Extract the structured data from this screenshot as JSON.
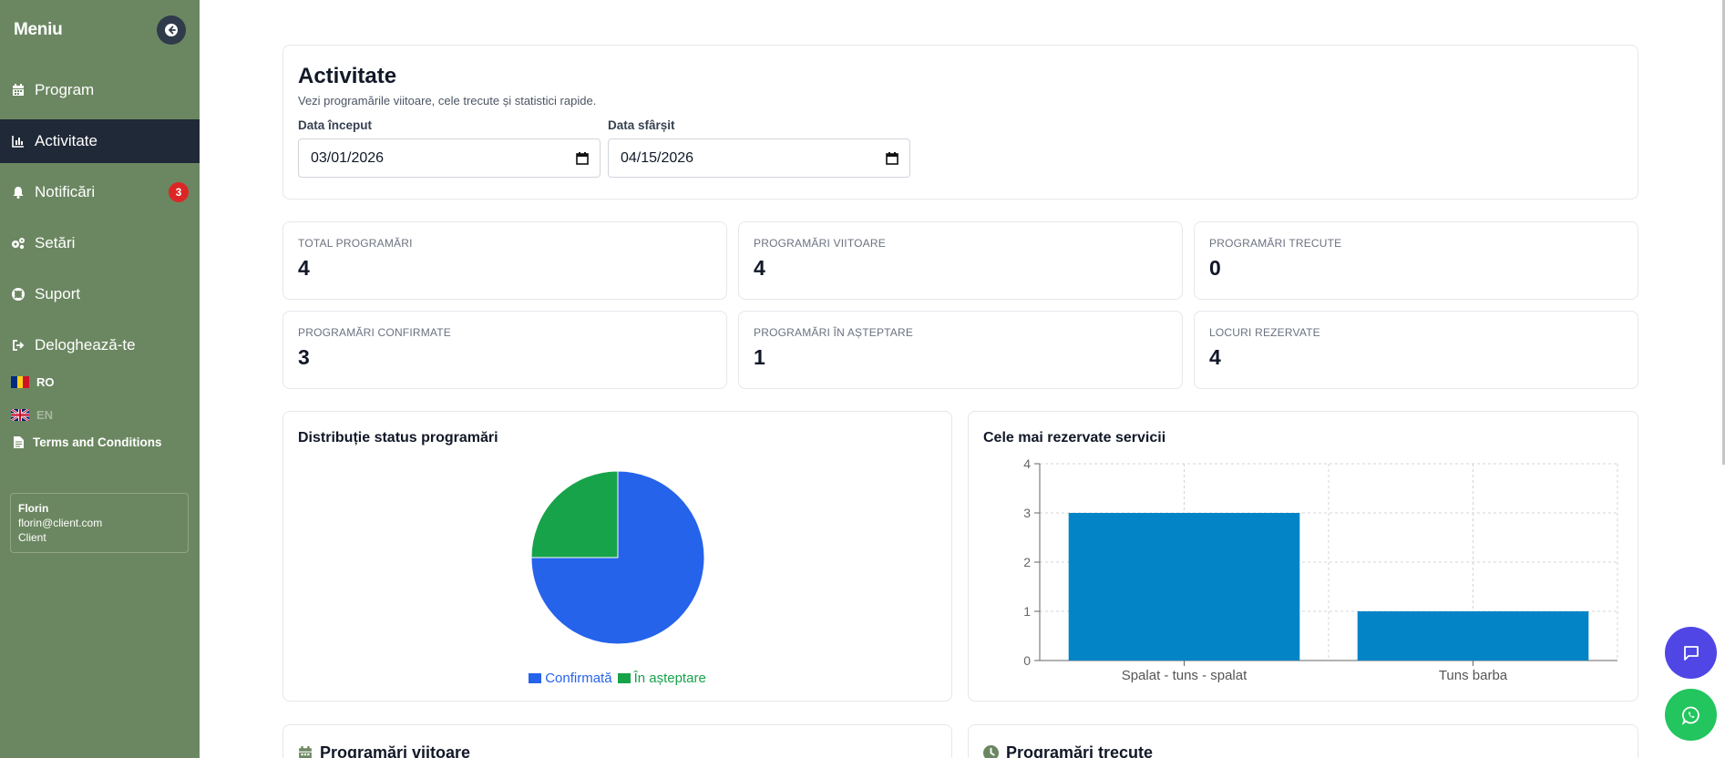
{
  "sidebar": {
    "title": "Meniu",
    "items": [
      {
        "label": "Program",
        "icon": "calendar-icon"
      },
      {
        "label": "Activitate",
        "icon": "chart-icon",
        "active": true
      },
      {
        "label": "Notificări",
        "icon": "bell-icon",
        "badge": "3"
      },
      {
        "label": "Setări",
        "icon": "gears-icon"
      },
      {
        "label": "Suport",
        "icon": "lifebuoy-icon"
      },
      {
        "label": "Deloghează-te",
        "icon": "logout-icon"
      }
    ],
    "languages": [
      {
        "code": "RO",
        "active": true
      },
      {
        "code": "EN",
        "active": false
      }
    ],
    "terms_label": "Terms and Conditions",
    "user": {
      "name": "Florin",
      "email": "florin@client.com",
      "role": "Client"
    }
  },
  "header": {
    "title": "Activitate",
    "subtitle": "Vezi programările viitoare, cele trecute și statistici rapide.",
    "start_label": "Data început",
    "start_value": "03/01/2026",
    "end_label": "Data sfârșit",
    "end_value": "04/15/2026"
  },
  "stats": [
    {
      "label": "TOTAL PROGRAMĂRI",
      "value": "4"
    },
    {
      "label": "PROGRAMĂRI VIITOARE",
      "value": "4"
    },
    {
      "label": "PROGRAMĂRI TRECUTE",
      "value": "0"
    },
    {
      "label": "PROGRAMĂRI CONFIRMATE",
      "value": "3"
    },
    {
      "label": "PROGRAMĂRI ÎN AȘTEPTARE",
      "value": "1"
    },
    {
      "label": "LOCURI REZERVATE",
      "value": "4"
    }
  ],
  "chart_data": [
    {
      "type": "pie",
      "title": "Distribuție status programări",
      "categories": [
        "Confirmată",
        "În așteptare"
      ],
      "values": [
        3,
        1
      ],
      "colors": [
        "#2563eb",
        "#16a34a"
      ],
      "legend": "bottom"
    },
    {
      "type": "bar",
      "title": "Cele mai rezervate servicii",
      "categories": [
        "Spalat - tuns - spalat",
        "Tuns barba"
      ],
      "values": [
        3,
        1
      ],
      "ylim": [
        0,
        4
      ],
      "yticks": [
        "0",
        "1",
        "2",
        "3",
        "4"
      ],
      "grid": true,
      "color": "#0284c7"
    }
  ],
  "sections": {
    "upcoming": "Programări viitoare",
    "past": "Programări trecute"
  },
  "colors": {
    "sidebar": "#6b8761",
    "active_item": "#1f2937",
    "badge": "#dc2626",
    "chat_fab": "#4f46e5",
    "whatsapp_fab": "#22c55e"
  }
}
